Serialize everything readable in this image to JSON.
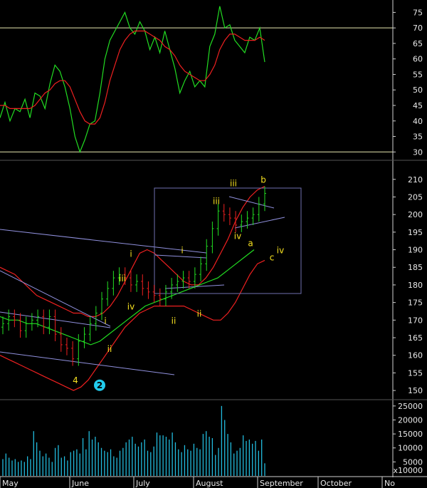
{
  "chart_data": [
    {
      "type": "line",
      "panel": "oscillator",
      "yticks": [
        30,
        35,
        40,
        45,
        50,
        55,
        60,
        65,
        70,
        75
      ],
      "ylim": [
        28,
        79
      ],
      "reference_lines": [
        70,
        30
      ],
      "colors": {
        "fast": "#22dd22",
        "slow": "#ee2020",
        "reference": "#e8e8b0"
      },
      "series": [
        {
          "key": "fast",
          "values": [
            41,
            46,
            40,
            44,
            43,
            47,
            41,
            49,
            48,
            44,
            52,
            58,
            56,
            51,
            44,
            35,
            30,
            34,
            39,
            40,
            49,
            60,
            66,
            69,
            72,
            75,
            70,
            68,
            72,
            69,
            63,
            67,
            62,
            69,
            63,
            57,
            49,
            53,
            56,
            51,
            53,
            51,
            64,
            68,
            77,
            70,
            71,
            66,
            64,
            62,
            67,
            66,
            70,
            59
          ]
        },
        {
          "key": "slow",
          "values": [
            45,
            45,
            44,
            44,
            44,
            44,
            44,
            45,
            47,
            49,
            50,
            52,
            53,
            53,
            51,
            47,
            43,
            40,
            39,
            39,
            41,
            46,
            53,
            58,
            63,
            66,
            68,
            69,
            69,
            69,
            68,
            67,
            66,
            64,
            63,
            61,
            58,
            56,
            55,
            54,
            53,
            53,
            55,
            58,
            63,
            66,
            68,
            68,
            67,
            66,
            66,
            66,
            67,
            66
          ]
        }
      ]
    },
    {
      "type": "candlestick",
      "panel": "price",
      "yticks": [
        150,
        155,
        160,
        165,
        170,
        175,
        180,
        185,
        190,
        195,
        200,
        205,
        210
      ],
      "ylim": [
        148,
        214
      ],
      "colors": {
        "up": "#22dd22",
        "down": "#ee2020",
        "bands": "#ee2020",
        "ma": "#22dd22",
        "trendlines": "#9090dd",
        "box": "#7070b0"
      },
      "close": [
        169,
        171,
        170,
        167,
        169,
        170,
        171,
        168,
        171,
        166,
        163,
        162,
        159,
        164,
        166,
        169,
        172,
        176,
        179,
        182,
        183,
        182,
        180,
        181,
        179,
        178,
        177,
        176,
        178,
        180,
        181,
        182,
        181,
        183,
        186,
        191,
        196,
        201,
        200,
        199,
        197,
        198,
        199,
        200,
        203,
        206
      ],
      "upper_band": [
        185,
        184,
        183,
        181,
        179,
        177,
        176,
        175,
        174,
        173,
        172,
        172,
        171,
        171,
        172,
        174,
        177,
        181,
        185,
        189,
        190,
        189,
        187,
        185,
        183,
        181,
        180,
        180,
        182,
        185,
        189,
        193,
        198,
        202,
        205,
        207,
        208
      ],
      "lower_band": [
        160,
        159,
        158,
        157,
        156,
        155,
        154,
        153,
        152,
        151,
        150,
        151,
        153,
        156,
        159,
        162,
        165,
        168,
        170,
        172,
        173,
        174,
        174,
        174,
        174,
        174,
        173,
        172,
        171,
        170,
        170,
        172,
        175,
        179,
        183,
        186,
        187
      ],
      "moving_average": [
        171,
        170,
        170,
        169,
        169,
        168,
        167,
        166,
        165,
        164,
        163,
        164,
        166,
        168,
        170,
        172,
        174,
        175,
        176,
        177,
        178,
        179,
        180,
        181,
        182,
        184,
        186,
        188,
        190
      ],
      "wave_labels": [
        {
          "text": "4",
          "x_bar": 17,
          "price": 152
        },
        {
          "text": "i",
          "x_bar": 24,
          "price": 169
        },
        {
          "text": "ii",
          "x_bar": 25,
          "price": 161
        },
        {
          "text": "i",
          "x_bar": 30,
          "price": 188
        },
        {
          "text": "iii",
          "x_bar": 28,
          "price": 181
        },
        {
          "text": "iv",
          "x_bar": 30,
          "price": 173
        },
        {
          "text": "i",
          "x_bar": 42,
          "price": 189
        },
        {
          "text": "ii",
          "x_bar": 40,
          "price": 169
        },
        {
          "text": "ii",
          "x_bar": 46,
          "price": 171
        },
        {
          "text": "iii",
          "x_bar": 50,
          "price": 203
        },
        {
          "text": "iii",
          "x_bar": 54,
          "price": 208
        },
        {
          "text": "iv",
          "x_bar": 55,
          "price": 193
        },
        {
          "text": "a",
          "x_bar": 58,
          "price": 191
        },
        {
          "text": "b",
          "x_bar": 61,
          "price": 209
        },
        {
          "text": "c",
          "x_bar": 63,
          "price": 187
        },
        {
          "text": "iv",
          "x_bar": 65,
          "price": 189
        }
      ],
      "wave_marker": "2"
    },
    {
      "type": "bar",
      "panel": "volume",
      "yticks": [
        "25000",
        "20000",
        "15000",
        "10000",
        "5000"
      ],
      "ylim": [
        0,
        27000
      ],
      "unit_label": "x10000",
      "color": "#22bbdd",
      "values": [
        6000,
        8000,
        6500,
        5500,
        6000,
        5000,
        5500,
        5000,
        7000,
        6000,
        16000,
        12000,
        9000,
        7000,
        8000,
        6500,
        5000,
        10000,
        11000,
        6500,
        7000,
        5500,
        8500,
        9000,
        9500,
        8000,
        13500,
        9500,
        16000,
        13000,
        14000,
        12000,
        10000,
        9000,
        8500,
        9500,
        7000,
        6500,
        9000,
        10000,
        12000,
        13000,
        14000,
        11500,
        10500,
        12000,
        13000,
        9000,
        8500,
        10500,
        15500,
        14500,
        14500,
        14000,
        13000,
        15500,
        12000,
        9500,
        8500,
        11000,
        9500,
        9000,
        11500,
        10000,
        9500,
        15000,
        16000,
        14000,
        13500,
        7500,
        10000,
        25000,
        20000,
        15000,
        12000,
        8000,
        9000,
        10000,
        14500,
        12500,
        13000,
        11500,
        12500,
        9000,
        13000,
        4500
      ]
    }
  ],
  "x_axis": {
    "months": [
      "May",
      "June",
      "July",
      "August",
      "September",
      "October",
      "No"
    ]
  }
}
